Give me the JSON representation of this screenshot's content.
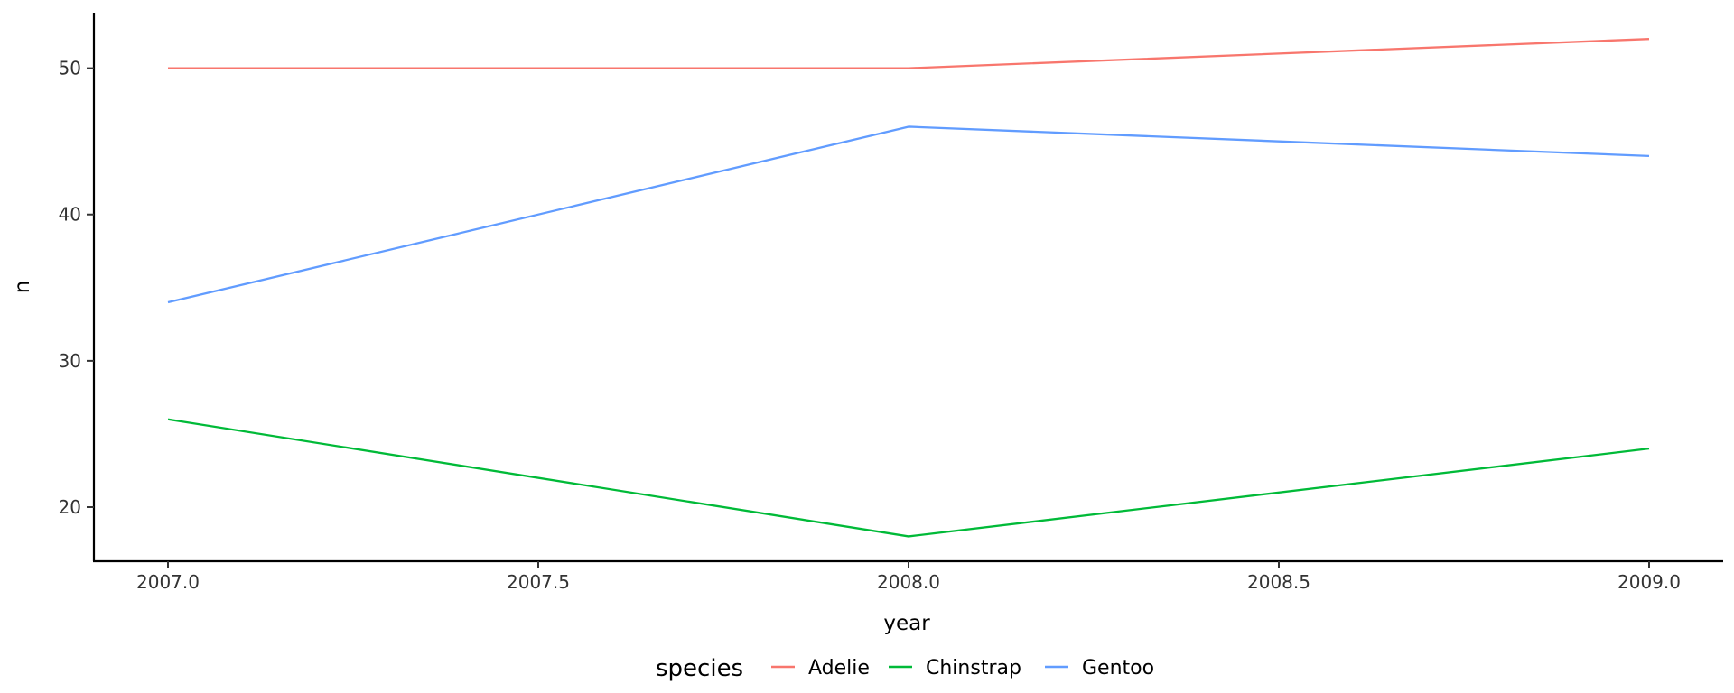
{
  "chart_data": {
    "type": "line",
    "title": "",
    "xlabel": "year",
    "ylabel": "n",
    "xlim": [
      2006.9,
      2009.1
    ],
    "ylim": [
      16.3,
      53.8
    ],
    "x_ticks": [
      2007.0,
      2007.5,
      2008.0,
      2008.5,
      2009.0
    ],
    "x_tick_labels": [
      "2007.0",
      "2007.5",
      "2008.0",
      "2008.5",
      "2009.0"
    ],
    "y_ticks": [
      20,
      30,
      40,
      50
    ],
    "y_tick_labels": [
      "20",
      "30",
      "40",
      "50"
    ],
    "grid": false,
    "legend": {
      "title": "species",
      "position": "bottom"
    },
    "x": [
      2007,
      2008,
      2009
    ],
    "series": [
      {
        "name": "Adelie",
        "values": [
          50,
          50,
          52
        ],
        "color": "#F8766D"
      },
      {
        "name": "Chinstrap",
        "values": [
          26,
          18,
          24
        ],
        "color": "#00BA38"
      },
      {
        "name": "Gentoo",
        "values": [
          34,
          46,
          44
        ],
        "color": "#619CFF"
      }
    ]
  }
}
